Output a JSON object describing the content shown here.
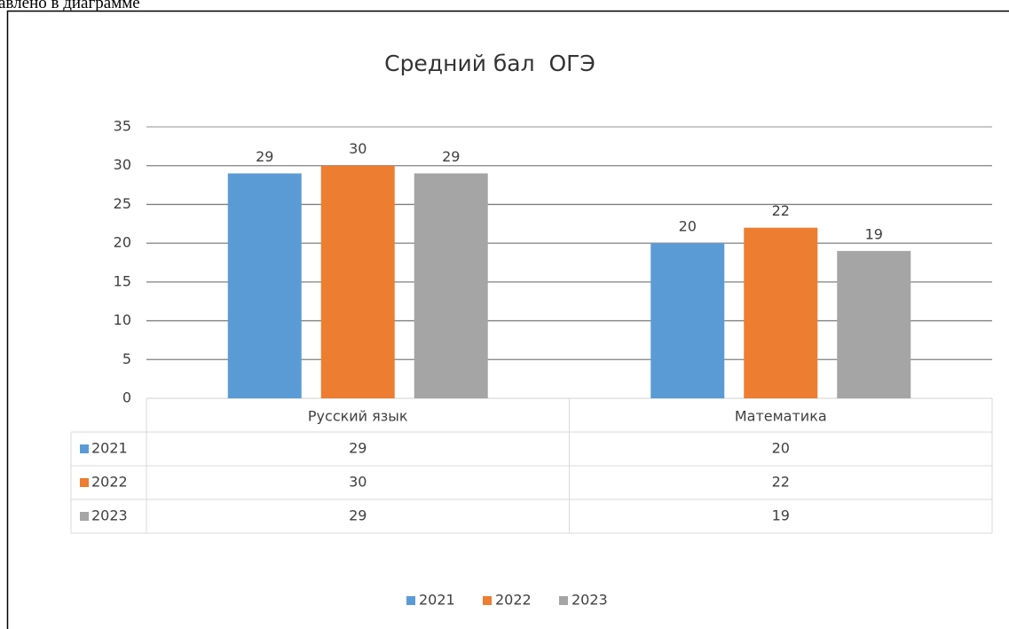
{
  "context_text": "авлено в диаграмме",
  "chart_data": {
    "type": "bar",
    "title": "Средний бал  ОГЭ",
    "categories": [
      "Русский язык",
      "Математика"
    ],
    "series": [
      {
        "name": "2021",
        "color": "#5b9bd5",
        "values": [
          29,
          20
        ]
      },
      {
        "name": "2022",
        "color": "#ed7d31",
        "values": [
          30,
          22
        ]
      },
      {
        "name": "2023",
        "color": "#a5a5a5",
        "values": [
          29,
          19
        ]
      }
    ],
    "ylim": [
      0,
      35
    ],
    "yticks": [
      0,
      5,
      10,
      15,
      20,
      25,
      30,
      35
    ],
    "grid": true,
    "data_labels": true,
    "data_table": true,
    "legend": "bottom"
  }
}
